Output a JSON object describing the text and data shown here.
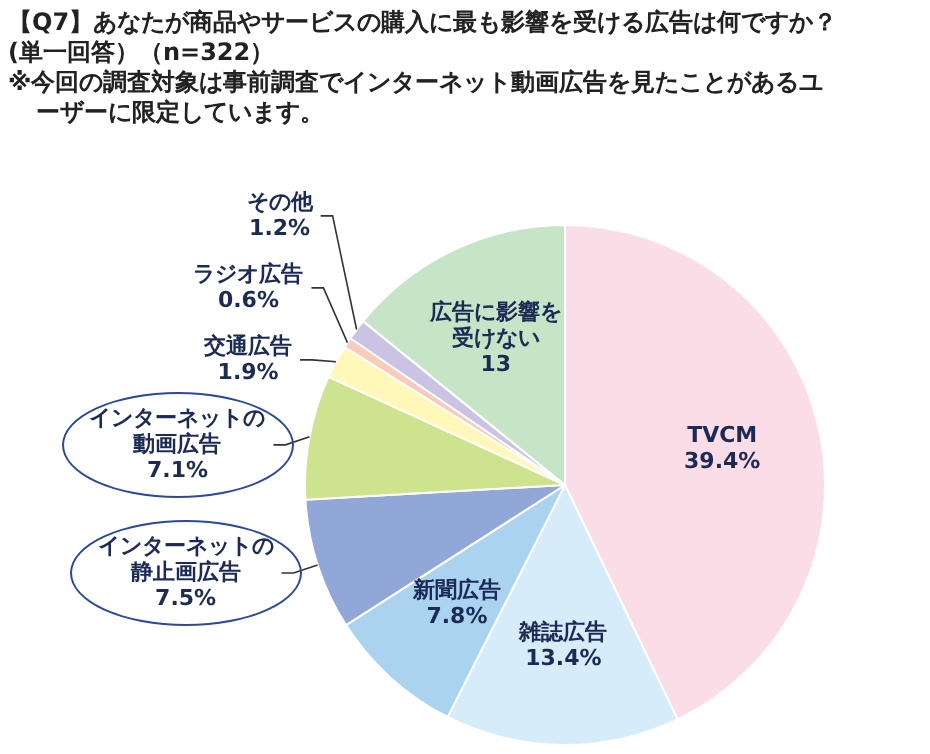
{
  "chart_data": {
    "type": "pie",
    "title": "【Q7】あなたが商品やサービスの購入に最も影響を受ける広告は何ですか？\n(単一回答）（n=322）",
    "annotations": [
      "※今回の調査対象は事前調査でインターネット動画広告を見たことがあるユーザーに限定しています。"
    ],
    "categories": [
      "TVCM",
      "雑誌広告",
      "新聞広告",
      "インターネットの静止画広告",
      "インターネットの動画広告",
      "交通広告",
      "ラジオ広告",
      "その他",
      "広告に影響を受けない"
    ],
    "values": [
      39.4,
      13.4,
      7.8,
      7.5,
      7.1,
      1.9,
      0.6,
      1.2,
      13
    ],
    "value_labels": [
      "39.4%",
      "13.4%",
      "7.8%",
      "7.5%",
      "7.1%",
      "1.9%",
      "0.6%",
      "1.2%",
      "13"
    ],
    "colors": [
      "#fbdde8",
      "#d6edf9",
      "#a9d3ef",
      "#91a7d8",
      "#cde38e",
      "#fff8b8",
      "#f9cbb9",
      "#cbc3e3",
      "#c6e4c6"
    ],
    "legend": false
  }
}
